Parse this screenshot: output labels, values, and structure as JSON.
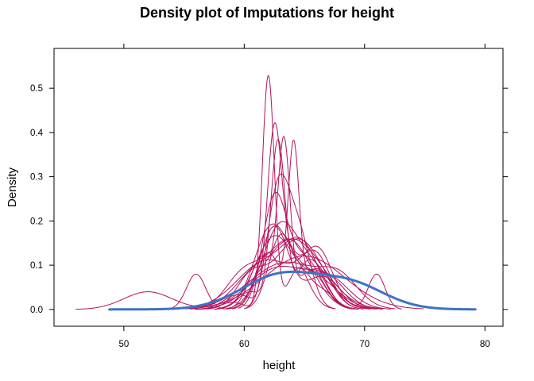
{
  "chart_data": {
    "type": "line",
    "title": "Density plot of Imputations for height",
    "xlabel": "height",
    "ylabel": "Density",
    "xlim": [
      44.2,
      81.5
    ],
    "ylim": [
      -0.038,
      0.59
    ],
    "xticks": [
      50,
      60,
      70,
      80
    ],
    "yticks": [
      0.0,
      0.1,
      0.2,
      0.3,
      0.4,
      0.5
    ],
    "xtick_labels": [
      "50",
      "60",
      "70",
      "80"
    ],
    "ytick_labels": [
      "0.0",
      "0.1",
      "0.2",
      "0.3",
      "0.4",
      "0.5"
    ],
    "colors": {
      "imputed": "#b5125a",
      "observed": "#3b73c4"
    },
    "grid": false,
    "observed": {
      "x_range": [
        48.8,
        79.2
      ],
      "components": [
        {
          "mu": 63.0,
          "sd": 3.2,
          "w": 0.58
        },
        {
          "mu": 69.0,
          "sd": 2.8,
          "w": 0.34
        },
        {
          "mu": 66.0,
          "sd": 4.5,
          "w": 0.08
        }
      ]
    },
    "series": [
      {
        "components": [
          {
            "mu": 62.0,
            "sd": 0.5,
            "w": 0.66
          },
          {
            "mu": 64.5,
            "sd": 0.9,
            "w": 0.2
          },
          {
            "mu": 66.5,
            "sd": 1.0,
            "w": 0.1
          },
          {
            "mu": 59.0,
            "sd": 1.0,
            "w": 0.04
          }
        ]
      },
      {
        "components": [
          {
            "mu": 62.5,
            "sd": 0.6,
            "w": 0.55
          },
          {
            "mu": 64.0,
            "sd": 1.2,
            "w": 0.35
          },
          {
            "mu": 59.5,
            "sd": 1.2,
            "w": 0.1
          }
        ]
      },
      {
        "components": [
          {
            "mu": 62.8,
            "sd": 0.6,
            "w": 0.56
          },
          {
            "mu": 65.5,
            "sd": 1.2,
            "w": 0.34
          },
          {
            "mu": 60.5,
            "sd": 1.0,
            "w": 0.1
          }
        ]
      },
      {
        "components": [
          {
            "mu": 63.3,
            "sd": 0.5,
            "w": 0.44
          },
          {
            "mu": 61.5,
            "sd": 1.0,
            "w": 0.3
          },
          {
            "mu": 65.5,
            "sd": 1.2,
            "w": 0.26
          }
        ]
      },
      {
        "components": [
          {
            "mu": 64.1,
            "sd": 0.45,
            "w": 0.38
          },
          {
            "mu": 62.0,
            "sd": 1.0,
            "w": 0.32
          },
          {
            "mu": 66.0,
            "sd": 1.3,
            "w": 0.3
          }
        ]
      },
      {
        "components": [
          {
            "mu": 52.0,
            "sd": 2.0,
            "w": 0.2
          },
          {
            "mu": 63.0,
            "sd": 2.5,
            "w": 0.6
          },
          {
            "mu": 67.0,
            "sd": 1.5,
            "w": 0.2
          }
        ]
      },
      {
        "components": [
          {
            "mu": 56.0,
            "sd": 0.8,
            "w": 0.16
          },
          {
            "mu": 62.5,
            "sd": 1.2,
            "w": 0.56
          },
          {
            "mu": 66.5,
            "sd": 1.5,
            "w": 0.28
          }
        ]
      },
      {
        "components": [
          {
            "mu": 71.0,
            "sd": 0.7,
            "w": 0.14
          },
          {
            "mu": 63.0,
            "sd": 1.0,
            "w": 0.4
          },
          {
            "mu": 66.0,
            "sd": 1.3,
            "w": 0.46
          }
        ]
      },
      {
        "components": [
          {
            "mu": 62.5,
            "sd": 1.0,
            "w": 0.6
          },
          {
            "mu": 65.0,
            "sd": 1.4,
            "w": 0.4
          }
        ]
      },
      {
        "components": [
          {
            "mu": 63.0,
            "sd": 1.5,
            "w": 0.7
          },
          {
            "mu": 66.0,
            "sd": 1.5,
            "w": 0.3
          }
        ]
      },
      {
        "components": [
          {
            "mu": 62.8,
            "sd": 0.9,
            "w": 0.58
          },
          {
            "mu": 64.5,
            "sd": 1.0,
            "w": 0.42
          }
        ]
      },
      {
        "components": [
          {
            "mu": 62.2,
            "sd": 1.4,
            "w": 0.6
          },
          {
            "mu": 65.5,
            "sd": 2.0,
            "w": 0.4
          }
        ]
      },
      {
        "components": [
          {
            "mu": 64.0,
            "sd": 2.5,
            "w": 1.0
          }
        ]
      },
      {
        "components": [
          {
            "mu": 63.5,
            "sd": 3.0,
            "w": 0.8
          },
          {
            "mu": 68.0,
            "sd": 1.5,
            "w": 0.2
          }
        ]
      },
      {
        "components": [
          {
            "mu": 65.0,
            "sd": 3.3,
            "w": 1.0
          }
        ]
      },
      {
        "components": [
          {
            "mu": 62.5,
            "sd": 1.6,
            "w": 0.65
          },
          {
            "mu": 66.8,
            "sd": 1.8,
            "w": 0.35
          }
        ]
      },
      {
        "components": [
          {
            "mu": 61.5,
            "sd": 2.0,
            "w": 0.5
          },
          {
            "mu": 64.8,
            "sd": 1.5,
            "w": 0.5
          }
        ]
      },
      {
        "components": [
          {
            "mu": 63.8,
            "sd": 1.8,
            "w": 0.7
          },
          {
            "mu": 60.0,
            "sd": 1.5,
            "w": 0.3
          }
        ]
      },
      {
        "components": [
          {
            "mu": 62.0,
            "sd": 2.5,
            "w": 0.7
          },
          {
            "mu": 66.0,
            "sd": 1.2,
            "w": 0.3
          }
        ]
      },
      {
        "components": [
          {
            "mu": 64.5,
            "sd": 2.0,
            "w": 0.8
          },
          {
            "mu": 60.5,
            "sd": 1.2,
            "w": 0.2
          }
        ]
      }
    ]
  }
}
